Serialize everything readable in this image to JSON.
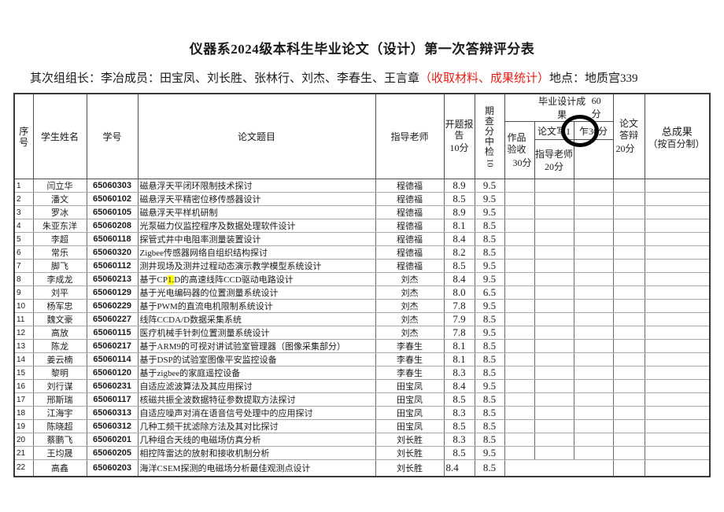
{
  "title": "仪器系2024级本科生毕业论文（设计）第一次答辩评分表",
  "meta": {
    "left": "其次组组长：李冶成员：田宝凤、刘长胜、张林行、刘杰、李春生、王言章",
    "red": "（收取材料、成果统计）",
    "right": "地点：地质宫339"
  },
  "table": {
    "header": {
      "seq": "序号",
      "student_name": "学生姓名",
      "student_id": "学号",
      "thesis_title": "论文题目",
      "advisor": "指导老师",
      "opening_report": "开题报告",
      "opening_report_points": "10分",
      "midterm_chars": "期查分中检",
      "midterm_points": "10",
      "grad_result": "毕业设计成果",
      "grad_result_points": "60分",
      "work_acceptance": "作品验收",
      "work_acceptance_points": "30分",
      "thesis_writing_left": "论文写1",
      "thesis_writing_right": "乍30分",
      "writing_advisor": "指导老师",
      "writing_advisor_points": "20分",
      "defense": "论文答辩",
      "defense_points": "20分",
      "total": "总成果",
      "total_note": "（按百分制）"
    },
    "rows": [
      {
        "n": "1",
        "name": "闫立华",
        "id": "65060303",
        "title": "磁悬浮天平闭环限制技术探讨",
        "advisor": "程德福",
        "s1": "8.9",
        "s2": "9.5"
      },
      {
        "n": "2",
        "name": "潘文",
        "id": "65060102",
        "title": "磁悬浮天平精密位移传感器设计",
        "advisor": "程德福",
        "s1": "8.5",
        "s2": "9.5"
      },
      {
        "n": "3",
        "name": "罗冰",
        "id": "65060105",
        "title": "磁悬浮天平样机研制",
        "advisor": "程德福",
        "s1": "8.9",
        "s2": "9.5"
      },
      {
        "n": "4",
        "name": "朱亚东洋",
        "id": "65060208",
        "title": "光泵磁力仪监控程序及数据处理软件设计",
        "advisor": "程德福",
        "s1": "8.1",
        "s2": "8.5"
      },
      {
        "n": "5",
        "name": "李超",
        "id": "65060118",
        "title": "探管式井中电阻率测量装置设计",
        "advisor": "程德福",
        "s1": "8.4",
        "s2": "8.5"
      },
      {
        "n": "6",
        "name": "常乐",
        "id": "65060320",
        "title": "Zigbee传感器网络自组织结构探讨",
        "advisor": "程德福",
        "s1": "8.2",
        "s2": "8.5"
      },
      {
        "n": "7",
        "name": "脚飞",
        "id": "65060112",
        "title": "测井现场及测井过程动态演示教学模型系统设计",
        "advisor": "程德福",
        "s1": "8.5",
        "s2": "9.5"
      },
      {
        "n": "8",
        "name": "李成龙",
        "id": "65060213",
        "title": "基于CP1.D的高速线阵CCD驱动电路设计",
        "hl": "1.",
        "advisor": "刘杰",
        "s1": "8.4",
        "s2": "9.5"
      },
      {
        "n": "9",
        "name": "刘平",
        "id": "65060129",
        "title": "基于光电编码器的位置测量系统设计",
        "advisor": "刘杰",
        "s1": "8.0",
        "s2": "6.5"
      },
      {
        "n": "10",
        "name": "杨军忠",
        "id": "65060229",
        "title": "基于PWM的直流电机限制系统设计",
        "advisor": "刘杰",
        "s1": "7.8",
        "s2": "9.5"
      },
      {
        "n": "11",
        "name": "魏文豪",
        "id": "65060227",
        "title": "线阵CCDA/D数据采集系统",
        "advisor": "刘杰",
        "s1": "7.9",
        "s2": "8.5"
      },
      {
        "n": "12",
        "name": "高放",
        "id": "65060115",
        "title": "医疗机械手针刺位置测量系统设计",
        "advisor": "刘杰",
        "s1": "7.8",
        "s2": "9.5"
      },
      {
        "n": "13",
        "name": "陈龙",
        "id": "65060217",
        "title": "基于ARM9的可视对讲试验室管理器（图像采集部分）",
        "advisor": "李春生",
        "s1": "8.1",
        "s2": "8.5"
      },
      {
        "n": "14",
        "name": "姜云楠",
        "id": "65060114",
        "title": "基于DSP的试验室图像平安监控设备",
        "advisor": "李春生",
        "s1": "8.1",
        "s2": "8.5"
      },
      {
        "n": "15",
        "name": "黎明",
        "id": "65060120",
        "title": "基于zigbee的家庭遥控设备",
        "advisor": "李春生",
        "s1": "8.3",
        "s2": "8.5"
      },
      {
        "n": "16",
        "name": "刘行谋",
        "id": "65060231",
        "title": "自适应滤波算法及其应用探讨",
        "advisor": "田宝凤",
        "s1": "8.4",
        "s2": "9.5"
      },
      {
        "n": "17",
        "name": "邢斯瑞",
        "id": "65060117",
        "title": "核磁共振全波数据特征参数提取方法探讨",
        "advisor": "田宝凤",
        "s1": "8.5",
        "s2": "8.5"
      },
      {
        "n": "18",
        "name": "江海宇",
        "id": "65060313",
        "title": "自适应噪声对消在语音信号处理中的应用探讨",
        "advisor": "田宝凤",
        "s1": "8.3",
        "s2": "8.5"
      },
      {
        "n": "19",
        "name": "陈晓超",
        "id": "65060312",
        "title": "几种工频干扰滤除方法及其对比探讨",
        "advisor": "田宝凤",
        "s1": "8.5",
        "s2": "8.5"
      },
      {
        "n": "20",
        "name": "蔡鹏飞",
        "id": "65060201",
        "title": "几种组合天线的电磁场仿真分析",
        "advisor": "刘长胜",
        "s1": "8.3",
        "s2": "8.5"
      },
      {
        "n": "21",
        "name": "王均晟",
        "id": "65060205",
        "title": "相控阵雷达的放射和接收机制分析",
        "advisor": "刘长胜",
        "s1": "8.5",
        "s2": "9.5"
      },
      {
        "n": "22",
        "name": "高鑫",
        "id": "65060203",
        "title": "海洋CSEM探测的电磁场分析最佳观测点设计",
        "advisor": "刘长胜",
        "s1": "8.4",
        "s2": "8.5",
        "merged": true,
        "s1_left": true,
        "tall": true
      }
    ]
  }
}
